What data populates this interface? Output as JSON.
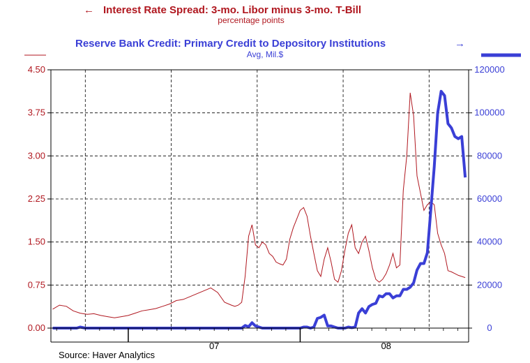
{
  "chart_data": {
    "type": "line",
    "title_left": "Interest Rate Spread: 3-mo. Libor minus 3-mo. T-Bill",
    "subtitle_left": "percentage points",
    "title_right": "Reserve Bank Credit: Primary Credit to Depository Institutions",
    "subtitle_right": "Avg, Mil.$",
    "source": "Source: Haver Analytics",
    "left_axis": {
      "ylim": [
        0,
        4.5
      ],
      "ticks": [
        "0.00",
        "0.75",
        "1.50",
        "2.25",
        "3.00",
        "3.75",
        "4.50"
      ],
      "tick_values": [
        0,
        0.75,
        1.5,
        2.25,
        3.0,
        3.75,
        4.5
      ]
    },
    "right_axis": {
      "ylim": [
        0,
        120000
      ],
      "ticks": [
        "0",
        "20000",
        "40000",
        "60000",
        "80000",
        "100000",
        "120000"
      ],
      "tick_values": [
        0,
        20000,
        40000,
        60000,
        80000,
        100000,
        120000
      ]
    },
    "x_axis": {
      "xlim": [
        2006.55,
        2008.98
      ],
      "labels": [
        "07",
        "08"
      ],
      "label_positions": [
        2007.5,
        2008.5
      ],
      "year_boundaries": [
        2007,
        2008
      ],
      "gridlines": [
        2006.75,
        2007.25,
        2007.75,
        2008.25,
        2008.75
      ]
    },
    "grid": true,
    "colors": {
      "spread": "#b0171f",
      "credit": "#3a3fd6"
    },
    "series": [
      {
        "name": "Interest Rate Spread: 3-mo. Libor minus 3-mo. T-Bill",
        "axis": "left",
        "x": [
          2006.56,
          2006.6,
          2006.64,
          2006.68,
          2006.72,
          2006.76,
          2006.8,
          2006.84,
          2006.88,
          2006.92,
          2006.96,
          2007.0,
          2007.04,
          2007.08,
          2007.12,
          2007.16,
          2007.2,
          2007.24,
          2007.28,
          2007.32,
          2007.36,
          2007.4,
          2007.44,
          2007.48,
          2007.52,
          2007.56,
          2007.6,
          2007.62,
          2007.64,
          2007.66,
          2007.68,
          2007.7,
          2007.72,
          2007.74,
          2007.76,
          2007.78,
          2007.8,
          2007.82,
          2007.84,
          2007.86,
          2007.88,
          2007.9,
          2007.92,
          2007.94,
          2007.96,
          2007.98,
          2008.0,
          2008.02,
          2008.04,
          2008.06,
          2008.08,
          2008.1,
          2008.12,
          2008.14,
          2008.16,
          2008.18,
          2008.2,
          2008.22,
          2008.24,
          2008.26,
          2008.28,
          2008.3,
          2008.32,
          2008.34,
          2008.36,
          2008.38,
          2008.4,
          2008.42,
          2008.44,
          2008.46,
          2008.48,
          2008.5,
          2008.52,
          2008.54,
          2008.56,
          2008.58,
          2008.6,
          2008.62,
          2008.64,
          2008.66,
          2008.68,
          2008.7,
          2008.72,
          2008.74,
          2008.76,
          2008.78,
          2008.8,
          2008.82,
          2008.84,
          2008.86,
          2008.88,
          2008.9,
          2008.92,
          2008.94,
          2008.96
        ],
        "values": [
          0.33,
          0.4,
          0.38,
          0.3,
          0.26,
          0.24,
          0.25,
          0.22,
          0.2,
          0.18,
          0.2,
          0.22,
          0.26,
          0.3,
          0.32,
          0.34,
          0.38,
          0.42,
          0.48,
          0.5,
          0.55,
          0.6,
          0.65,
          0.7,
          0.62,
          0.45,
          0.4,
          0.38,
          0.4,
          0.45,
          0.9,
          1.6,
          1.8,
          1.45,
          1.4,
          1.5,
          1.45,
          1.3,
          1.25,
          1.15,
          1.12,
          1.1,
          1.2,
          1.55,
          1.75,
          1.9,
          2.05,
          2.1,
          1.95,
          1.6,
          1.3,
          1.0,
          0.9,
          1.2,
          1.4,
          1.15,
          0.85,
          0.8,
          1.0,
          1.35,
          1.65,
          1.8,
          1.4,
          1.3,
          1.5,
          1.6,
          1.35,
          1.05,
          0.85,
          0.8,
          0.85,
          0.95,
          1.1,
          1.3,
          1.05,
          1.1,
          2.4,
          3.0,
          4.1,
          3.7,
          2.65,
          2.35,
          2.05,
          2.15,
          2.2,
          2.15,
          1.65,
          1.45,
          1.3,
          1.0,
          0.98,
          0.95,
          0.92,
          0.9,
          0.88
        ]
      },
      {
        "name": "Reserve Bank Credit: Primary Credit to Depository Institutions",
        "axis": "right",
        "x": [
          2006.56,
          2006.7,
          2006.72,
          2006.75,
          2006.8,
          2007.2,
          2007.25,
          2007.3,
          2007.35,
          2007.4,
          2007.45,
          2007.5,
          2007.55,
          2007.6,
          2007.62,
          2007.66,
          2007.68,
          2007.7,
          2007.72,
          2007.74,
          2007.78,
          2007.82,
          2007.85,
          2007.88,
          2007.9,
          2007.92,
          2007.94,
          2007.96,
          2008.0,
          2008.02,
          2008.04,
          2008.06,
          2008.08,
          2008.1,
          2008.12,
          2008.14,
          2008.16,
          2008.18,
          2008.2,
          2008.22,
          2008.24,
          2008.26,
          2008.28,
          2008.3,
          2008.32,
          2008.34,
          2008.36,
          2008.38,
          2008.4,
          2008.42,
          2008.44,
          2008.46,
          2008.48,
          2008.5,
          2008.52,
          2008.54,
          2008.56,
          2008.58,
          2008.6,
          2008.62,
          2008.64,
          2008.66,
          2008.68,
          2008.7,
          2008.72,
          2008.74,
          2008.76,
          2008.78,
          2008.8,
          2008.82,
          2008.84,
          2008.86,
          2008.88,
          2008.9,
          2008.92,
          2008.94,
          2008.96
        ],
        "values": [
          0,
          0,
          500,
          0,
          0,
          0,
          0,
          0,
          0,
          0,
          0,
          0,
          0,
          0,
          0,
          0,
          1200,
          600,
          2500,
          1000,
          0,
          0,
          0,
          0,
          0,
          0,
          0,
          0,
          0,
          500,
          500,
          0,
          500,
          4500,
          5000,
          6000,
          1000,
          1000,
          500,
          0,
          0,
          0,
          500,
          200,
          500,
          7000,
          9000,
          7000,
          10000,
          11000,
          11500,
          15000,
          14500,
          16000,
          16000,
          14000,
          15000,
          15000,
          18000,
          18000,
          19000,
          21000,
          27000,
          30000,
          30000,
          35000,
          55000,
          75000,
          100000,
          110000,
          108000,
          95000,
          93000,
          89000,
          88000,
          89000,
          70000
        ]
      }
    ]
  }
}
